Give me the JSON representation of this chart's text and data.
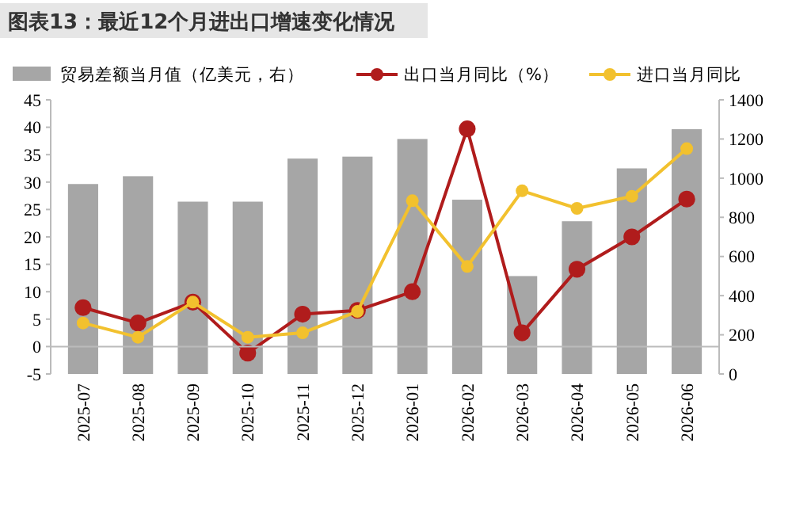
{
  "chart_data": {
    "type": "line",
    "title": "图表13：最近12个月进出口增速变化情况",
    "categories": [
      "2025-07",
      "2025-08",
      "2025-09",
      "2025-10",
      "2025-11",
      "2025-12",
      "2026-01",
      "2026-02",
      "2026-03",
      "2026-04",
      "2026-05",
      "2026-06"
    ],
    "series": [
      {
        "name": "贸易差额当月值（亿美元，右）",
        "type": "bar",
        "axis": "y2",
        "color": "#a6a6a6",
        "values": [
          970,
          1010,
          880,
          880,
          1100,
          1110,
          1200,
          890,
          500,
          780,
          1050,
          1250
        ]
      },
      {
        "name": "出口当月同比（%）",
        "color": "#b01c1c",
        "values": [
          7.1,
          4.3,
          8.1,
          -1.2,
          5.9,
          6.6,
          10,
          39.7,
          2.5,
          14.1,
          20,
          26.9
        ]
      },
      {
        "name": "进口当月同比",
        "color": "#f2c12e",
        "values": [
          4.3,
          1.7,
          8.1,
          1.7,
          2.5,
          6.4,
          26.6,
          14.6,
          28.4,
          25.2,
          27.4,
          36.1
        ]
      }
    ],
    "ylim": [
      -5,
      45
    ],
    "yticks": [
      -5,
      0,
      5,
      10,
      15,
      20,
      25,
      30,
      35,
      40,
      45
    ],
    "y2lim": [
      0,
      1400
    ],
    "y2ticks": [
      0,
      200,
      400,
      600,
      800,
      1000,
      1200,
      1400
    ],
    "marker": "circle",
    "line_style": "solid",
    "legend": "top",
    "grid": false
  }
}
